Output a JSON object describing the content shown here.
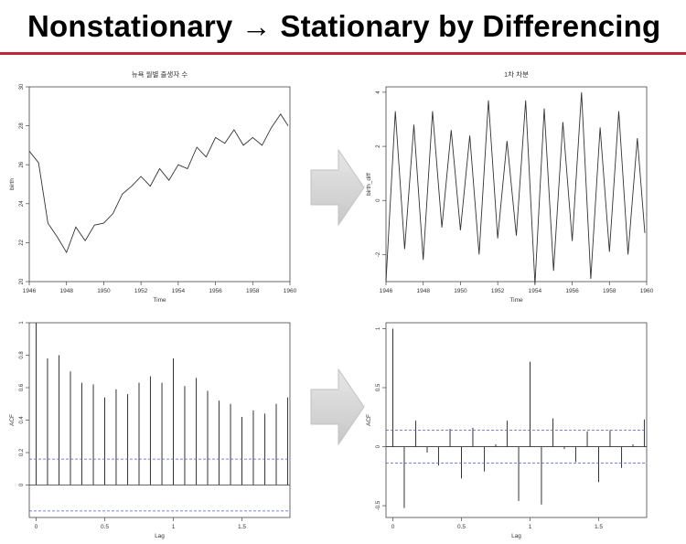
{
  "slide": {
    "title": "Nonstationary → Stationary by Differencing"
  },
  "colors": {
    "accent_rule": "#c0283a",
    "series": "#333333",
    "confidence": "#4a5bd0",
    "arrow": "#d4d4d4"
  },
  "arrows": [
    {
      "icon": "right-arrow-icon"
    },
    {
      "icon": "right-arrow-icon"
    }
  ],
  "chart_data": [
    {
      "type": "line",
      "title": "뉴욕 월별 출생자 수",
      "xlabel": "Time",
      "ylabel": "birth",
      "xlim": [
        1946,
        1960
      ],
      "ylim": [
        20,
        30
      ],
      "xticks": [
        1946,
        1948,
        1950,
        1952,
        1954,
        1956,
        1958,
        1960
      ],
      "yticks": [
        20,
        22,
        24,
        26,
        28,
        30
      ],
      "series": [
        {
          "x": [
            1946,
            1946.5,
            1947,
            1947.5,
            1948,
            1948.5,
            1949,
            1949.5,
            1950,
            1950.5,
            1951,
            1951.5,
            1952,
            1952.5,
            1953,
            1953.5,
            1954,
            1954.5,
            1955,
            1955.5,
            1956,
            1956.5,
            1957,
            1957.5,
            1958,
            1958.5,
            1959,
            1959.5,
            1959.9
          ],
          "y": [
            26.7,
            26.1,
            23.0,
            22.3,
            21.5,
            22.8,
            22.1,
            22.9,
            23.0,
            23.5,
            24.5,
            24.9,
            25.4,
            24.9,
            25.8,
            25.2,
            26.0,
            25.8,
            26.9,
            26.4,
            27.4,
            27.1,
            27.8,
            27.0,
            27.4,
            27.0,
            27.9,
            28.6,
            28.0
          ]
        }
      ]
    },
    {
      "type": "line",
      "title": "1차 차분",
      "xlabel": "Time",
      "ylabel": "birth_diff",
      "xlim": [
        1946,
        1960
      ],
      "ylim": [
        -3,
        4.2
      ],
      "xticks": [
        1946,
        1948,
        1950,
        1952,
        1954,
        1956,
        1958,
        1960
      ],
      "yticks": [
        -2,
        0,
        2,
        4
      ],
      "series": [
        {
          "x": [
            1946,
            1946.5,
            1947,
            1947.5,
            1948,
            1948.5,
            1949,
            1949.5,
            1950,
            1950.5,
            1951,
            1951.5,
            1952,
            1952.5,
            1953,
            1953.5,
            1954,
            1954.5,
            1955,
            1955.5,
            1956,
            1956.5,
            1957,
            1957.5,
            1958,
            1958.5,
            1959,
            1959.5,
            1959.9
          ],
          "y": [
            -3.0,
            3.3,
            -1.8,
            2.8,
            -2.2,
            3.3,
            -1.0,
            2.6,
            -1.1,
            2.4,
            -2.0,
            3.7,
            -1.4,
            2.2,
            -1.3,
            3.7,
            -3.1,
            3.4,
            -2.6,
            2.9,
            -1.5,
            4.0,
            -2.9,
            2.7,
            -1.9,
            3.3,
            -2.0,
            2.3,
            -1.2
          ]
        }
      ]
    },
    {
      "type": "bar",
      "title": "",
      "xlabel": "Lag",
      "ylabel": "ACF",
      "xlim": [
        -0.05,
        1.85
      ],
      "ylim": [
        -0.2,
        1.0
      ],
      "xticks": [
        0.0,
        0.5,
        1.0,
        1.5
      ],
      "yticks": [
        0.0,
        0.2,
        0.4,
        0.6,
        0.8,
        1.0
      ],
      "confidence_band": 0.16,
      "series": [
        {
          "x": [
            0.0,
            0.083,
            0.167,
            0.25,
            0.333,
            0.417,
            0.5,
            0.583,
            0.667,
            0.75,
            0.833,
            0.917,
            1.0,
            1.083,
            1.167,
            1.25,
            1.333,
            1.417,
            1.5,
            1.583,
            1.667,
            1.75,
            1.833
          ],
          "y": [
            1.0,
            0.78,
            0.8,
            0.7,
            0.63,
            0.62,
            0.54,
            0.59,
            0.56,
            0.63,
            0.67,
            0.63,
            0.78,
            0.61,
            0.66,
            0.58,
            0.52,
            0.5,
            0.42,
            0.46,
            0.44,
            0.5,
            0.54
          ]
        }
      ]
    },
    {
      "type": "bar",
      "title": "",
      "xlabel": "Lag",
      "ylabel": "ACF",
      "xlim": [
        -0.05,
        1.85
      ],
      "ylim": [
        -0.6,
        1.05
      ],
      "xticks": [
        0.0,
        0.5,
        1.0,
        1.5
      ],
      "yticks": [
        -0.5,
        0.0,
        0.5,
        1.0
      ],
      "confidence_band": 0.14,
      "series": [
        {
          "x": [
            0.0,
            0.083,
            0.167,
            0.25,
            0.333,
            0.417,
            0.5,
            0.583,
            0.667,
            0.75,
            0.833,
            0.917,
            1.0,
            1.083,
            1.167,
            1.25,
            1.333,
            1.417,
            1.5,
            1.583,
            1.667,
            1.75,
            1.833
          ],
          "y": [
            1.0,
            -0.52,
            0.22,
            -0.05,
            -0.16,
            0.15,
            -0.27,
            0.16,
            -0.21,
            0.02,
            0.22,
            -0.46,
            0.72,
            -0.49,
            0.24,
            -0.02,
            -0.13,
            0.13,
            -0.3,
            0.14,
            -0.18,
            0.02,
            0.23
          ]
        }
      ]
    }
  ]
}
